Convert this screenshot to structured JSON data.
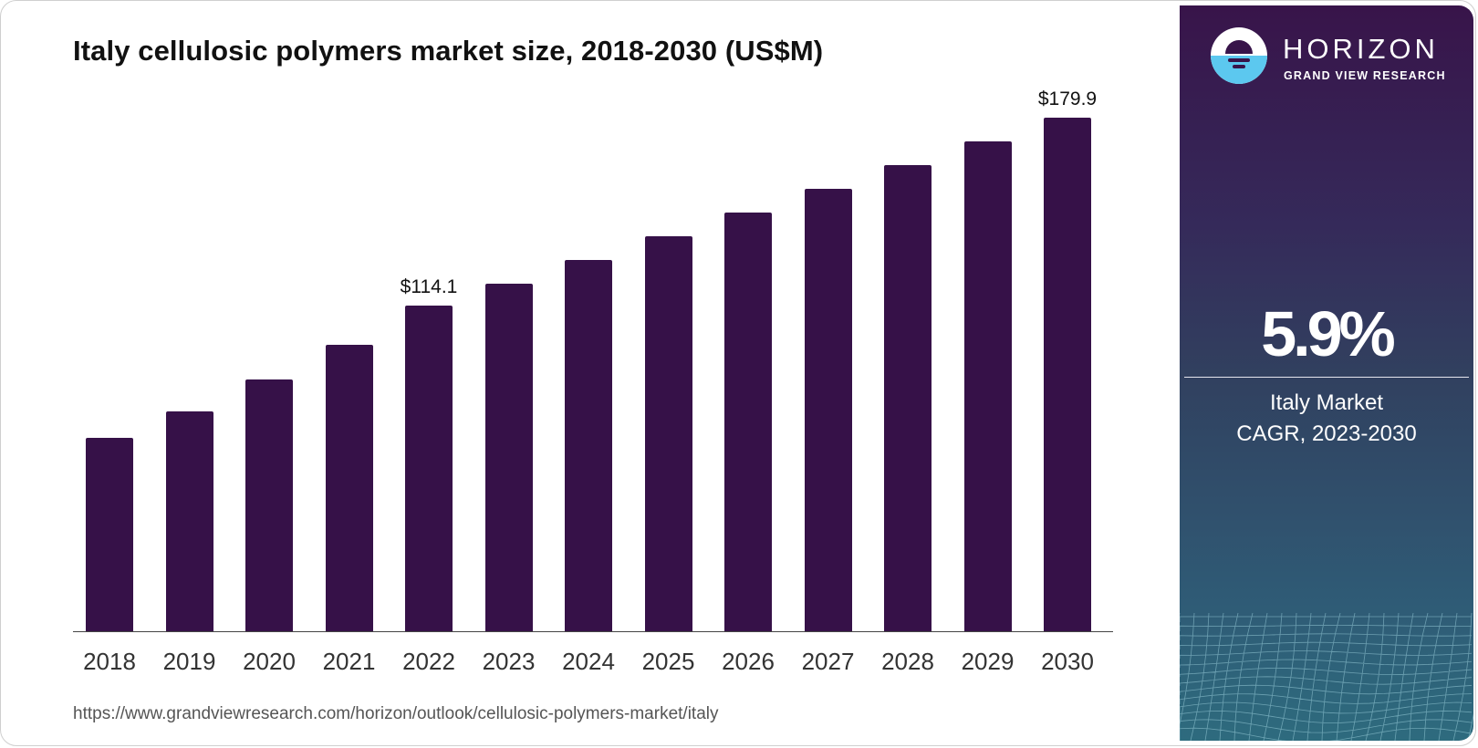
{
  "title": "Italy cellulosic polymers market size, 2018-2030 (US$M)",
  "source_url": "https://www.grandviewresearch.com/horizon/outlook/cellulosic-polymers-market/italy",
  "colors": {
    "bar": "#361148",
    "panel_top": "#38144a",
    "panel_bottom": "#2e6b7e",
    "logo_water": "#5cc8ef"
  },
  "brand": {
    "name": "HORIZON",
    "subtitle": "GRAND VIEW RESEARCH",
    "logo_icon": "horizon-sun-logo-icon"
  },
  "side_panel": {
    "cagr_value": "5.9%",
    "caption_line1": "Italy Market",
    "caption_line2": "CAGR, 2023-2030"
  },
  "bar_labels": {
    "2022": "$114.1",
    "2030": "$179.9"
  },
  "chart_data": {
    "type": "bar",
    "title": "Italy cellulosic polymers market size, 2018-2030 (US$M)",
    "xlabel": "",
    "ylabel": "US$M",
    "categories": [
      "2018",
      "2019",
      "2020",
      "2021",
      "2022",
      "2023",
      "2024",
      "2025",
      "2026",
      "2027",
      "2028",
      "2029",
      "2030"
    ],
    "values": [
      67.8,
      77.0,
      88.2,
      100.3,
      114.1,
      121.8,
      130.0,
      138.4,
      146.4,
      155.0,
      163.3,
      171.6,
      179.9
    ],
    "annotations": [
      {
        "x": "2022",
        "label": "$114.1"
      },
      {
        "x": "2030",
        "label": "$179.9"
      }
    ],
    "ylim": [
      0,
      189
    ],
    "grid": false,
    "legend": "none"
  }
}
